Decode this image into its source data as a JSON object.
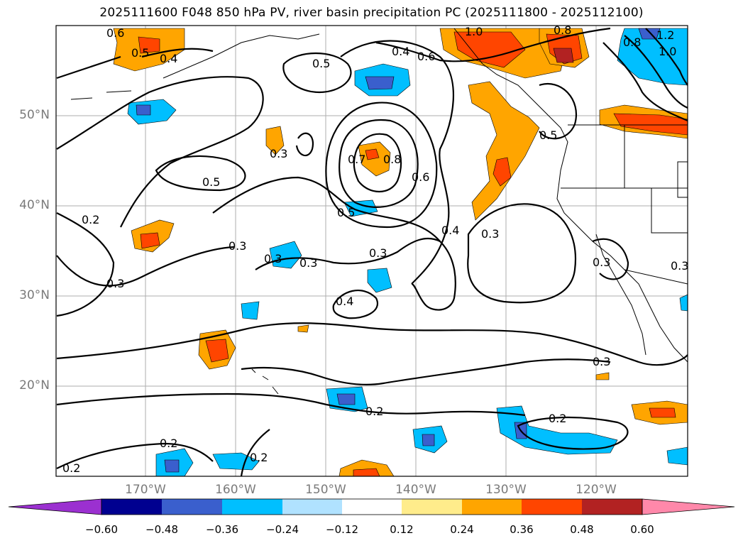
{
  "title": "2025111600 F048 850 hPa PV, river basin precipitation PC (2025111800 - 2025112100)",
  "lat_labels": [
    "50°N",
    "40°N",
    "30°N",
    "20°N"
  ],
  "lon_labels": [
    "170°W",
    "160°W",
    "150°W",
    "140°W",
    "130°W",
    "120°W"
  ],
  "contour_labels": [
    "0.5",
    "0.4",
    "0.5",
    "0.4",
    "0.6",
    "0.8",
    "1.0",
    "1.2",
    "0.8",
    "1.0",
    "0.3",
    "0.5",
    "0.7",
    "0.8",
    "0.6",
    "0.5",
    "0.2",
    "0.5",
    "0.3",
    "0.3",
    "0.3",
    "0.3",
    "0.4",
    "0.4",
    "0.3",
    "0.3",
    "0.2",
    "0.2",
    "0.3",
    "0.2",
    "0.2",
    "0.2",
    "0.3",
    "0.6",
    "0.3"
  ],
  "colorbar": {
    "ticks": [
      "−0.60",
      "−0.48",
      "−0.36",
      "−0.24",
      "−0.12",
      "0.12",
      "0.24",
      "0.36",
      "0.48",
      "0.60"
    ],
    "colors": [
      "#9b30d0",
      "#000090",
      "#3a5fcd",
      "#00bfff",
      "#b0e2ff",
      "#ffffff",
      "#ffec8b",
      "#ffa500",
      "#ff4500",
      "#b22222",
      "#ff88aa"
    ]
  }
}
